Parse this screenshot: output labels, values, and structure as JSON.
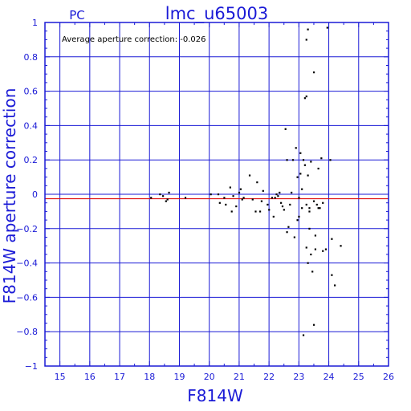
{
  "chart_data": {
    "type": "scatter",
    "title": "lmc_u65003",
    "corner_label": "PC",
    "annotation": "Average aperture correction: -0.026",
    "xlabel": "F814W",
    "ylabel": "F814W aperture correction",
    "xlim": [
      14.5,
      26
    ],
    "ylim": [
      -1,
      1
    ],
    "xticks": [
      15,
      16,
      17,
      18,
      19,
      20,
      21,
      22,
      23,
      24,
      25,
      26
    ],
    "yticks": [
      -1,
      -0.8,
      -0.6,
      -0.4,
      -0.2,
      0,
      0.2,
      0.4,
      0.6,
      0.8,
      1
    ],
    "ytick_labels": [
      "−1",
      "−0.8",
      "−0.6",
      "−0.4",
      "−0.2",
      "0",
      "0.2",
      "0.4",
      "0.6",
      "0.8",
      "1"
    ],
    "grid": true,
    "zero_line": 0,
    "average_line": -0.026,
    "colors": {
      "axes": "#1a1ad6",
      "zero_line": "#1a1ad6",
      "average_line": "#e01010",
      "points": "#000000"
    },
    "points": [
      [
        18.05,
        -0.02
      ],
      [
        18.35,
        0.0
      ],
      [
        18.45,
        -0.01
      ],
      [
        18.55,
        -0.04
      ],
      [
        18.6,
        -0.03
      ],
      [
        18.65,
        0.01
      ],
      [
        19.2,
        -0.02
      ],
      [
        20.05,
        0.0
      ],
      [
        20.3,
        0.0
      ],
      [
        20.35,
        -0.05
      ],
      [
        20.5,
        -0.02
      ],
      [
        20.55,
        -0.06
      ],
      [
        20.7,
        0.04
      ],
      [
        20.75,
        -0.1
      ],
      [
        20.8,
        -0.01
      ],
      [
        20.9,
        -0.07
      ],
      [
        21.0,
        0.01
      ],
      [
        21.05,
        0.03
      ],
      [
        21.1,
        -0.03
      ],
      [
        21.15,
        -0.02
      ],
      [
        21.35,
        0.11
      ],
      [
        21.45,
        -0.03
      ],
      [
        21.55,
        -0.1
      ],
      [
        21.6,
        0.07
      ],
      [
        21.7,
        -0.1
      ],
      [
        21.75,
        -0.04
      ],
      [
        21.8,
        0.02
      ],
      [
        21.95,
        -0.06
      ],
      [
        22.0,
        -0.09
      ],
      [
        22.1,
        -0.02
      ],
      [
        22.15,
        -0.13
      ],
      [
        22.2,
        -0.02
      ],
      [
        22.25,
        0.0
      ],
      [
        22.3,
        -0.01
      ],
      [
        22.35,
        0.01
      ],
      [
        22.4,
        -0.05
      ],
      [
        22.45,
        -0.07
      ],
      [
        22.5,
        -0.09
      ],
      [
        22.55,
        0.38
      ],
      [
        22.6,
        0.2
      ],
      [
        22.6,
        -0.22
      ],
      [
        22.65,
        -0.19
      ],
      [
        22.7,
        -0.06
      ],
      [
        22.75,
        0.01
      ],
      [
        22.8,
        0.2
      ],
      [
        22.85,
        -0.25
      ],
      [
        22.9,
        0.27
      ],
      [
        22.95,
        -0.15
      ],
      [
        22.95,
        0.1
      ],
      [
        23.0,
        -0.02
      ],
      [
        23.0,
        -0.13
      ],
      [
        23.05,
        0.24
      ],
      [
        23.05,
        0.12
      ],
      [
        23.1,
        0.03
      ],
      [
        23.1,
        -0.08
      ],
      [
        23.15,
        0.2
      ],
      [
        23.15,
        -0.82
      ],
      [
        23.2,
        0.56
      ],
      [
        23.2,
        0.17
      ],
      [
        23.25,
        0.9
      ],
      [
        23.25,
        0.57
      ],
      [
        23.25,
        -0.31
      ],
      [
        23.25,
        -0.06
      ],
      [
        23.3,
        0.96
      ],
      [
        23.3,
        0.11
      ],
      [
        23.3,
        -0.4
      ],
      [
        23.35,
        -0.08
      ],
      [
        23.35,
        -0.1
      ],
      [
        23.35,
        -0.2
      ],
      [
        23.4,
        0.19
      ],
      [
        23.4,
        -0.35
      ],
      [
        23.45,
        -0.45
      ],
      [
        23.5,
        0.71
      ],
      [
        23.5,
        -0.04
      ],
      [
        23.5,
        -0.76
      ],
      [
        23.55,
        -0.32
      ],
      [
        23.55,
        -0.24
      ],
      [
        23.6,
        -0.06
      ],
      [
        23.65,
        -0.08
      ],
      [
        23.65,
        0.15
      ],
      [
        23.7,
        -0.08
      ],
      [
        23.75,
        0.21
      ],
      [
        23.8,
        -0.05
      ],
      [
        23.8,
        -0.33
      ],
      [
        23.9,
        -0.32
      ],
      [
        23.95,
        0.97
      ],
      [
        24.05,
        0.2
      ],
      [
        24.1,
        -0.26
      ],
      [
        24.1,
        -0.47
      ],
      [
        24.2,
        -0.53
      ],
      [
        24.4,
        -0.3
      ]
    ]
  }
}
